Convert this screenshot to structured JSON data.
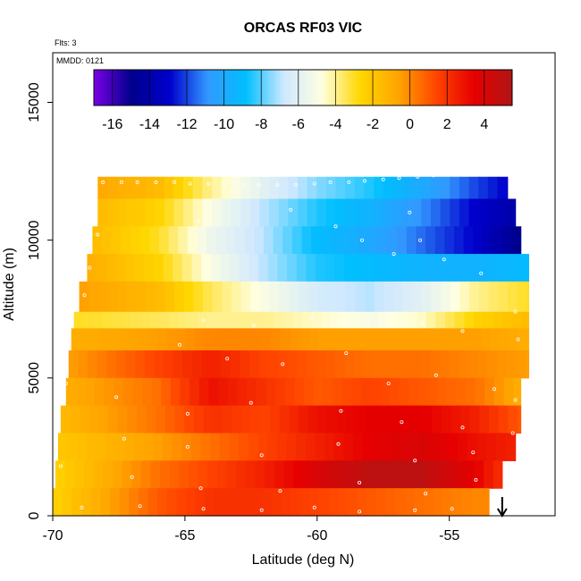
{
  "chart_data": {
    "type": "heatmap",
    "title": "ORCAS RF03 VIC",
    "subtitle_flights": "Flts: 3",
    "subtitle_date": "MMDD: 0121",
    "xlabel": "Latitude (deg N)",
    "ylabel": "Altitude (m)",
    "xlim": [
      -70,
      -51
    ],
    "ylim": [
      0,
      16800
    ],
    "xticks": [
      -70,
      -65,
      -60,
      -55
    ],
    "yticks": [
      0,
      5000,
      10000,
      15000
    ],
    "grid": false,
    "colorbar": {
      "placement": "top-inside",
      "range": [
        -17,
        5.5
      ],
      "ticks": [
        -16,
        -14,
        -12,
        -10,
        -8,
        -6,
        -4,
        -2,
        0,
        2,
        4
      ],
      "colors": [
        "#7a00e6",
        "#00008b",
        "#0000cd",
        "#3399ff",
        "#00bfff",
        "#cfe8ff",
        "#ffffe0",
        "#ffd700",
        "#ffa500",
        "#ff4500",
        "#e60000",
        "#b01515"
      ]
    },
    "arrow_marker": {
      "x": -53,
      "direction": "down"
    },
    "bands": [
      {
        "alt": [
          11500,
          12300
        ],
        "values": [
          [
            -68.3,
            -0.8
          ],
          [
            -66,
            -1.5
          ],
          [
            -64,
            -4
          ],
          [
            -62,
            -6
          ],
          [
            -60,
            -7.5
          ],
          [
            -58,
            -8.5
          ],
          [
            -56,
            -10
          ],
          [
            -54,
            -12
          ],
          [
            -52.8,
            -13
          ]
        ]
      },
      {
        "alt": [
          10500,
          11500
        ],
        "values": [
          [
            -68.3,
            -1.5
          ],
          [
            -66,
            -2.5
          ],
          [
            -64,
            -5
          ],
          [
            -62,
            -7
          ],
          [
            -60,
            -8.5
          ],
          [
            -58,
            -9.5
          ],
          [
            -56,
            -11
          ],
          [
            -54,
            -13
          ],
          [
            -52.5,
            -14
          ]
        ]
      },
      {
        "alt": [
          9500,
          10500
        ],
        "values": [
          [
            -68.5,
            -1.5
          ],
          [
            -66,
            -3
          ],
          [
            -64,
            -5.5
          ],
          [
            -62,
            -7
          ],
          [
            -60,
            -9
          ],
          [
            -58,
            -10
          ],
          [
            -56,
            -11.5
          ],
          [
            -54,
            -13
          ],
          [
            -52.3,
            -15
          ]
        ]
      },
      {
        "alt": [
          8500,
          9500
        ],
        "values": [
          [
            -68.7,
            -1
          ],
          [
            -66,
            -2.5
          ],
          [
            -64,
            -5
          ],
          [
            -62,
            -7
          ],
          [
            -60,
            -8.5
          ],
          [
            -58,
            -9
          ],
          [
            -56,
            -9.5
          ],
          [
            -54,
            -9.5
          ],
          [
            -52,
            -9
          ]
        ]
      },
      {
        "alt": [
          7400,
          8500
        ],
        "values": [
          [
            -69,
            -0.5
          ],
          [
            -66,
            -1.5
          ],
          [
            -64,
            -3.5
          ],
          [
            -62,
            -5
          ],
          [
            -60,
            -6.5
          ],
          [
            -58,
            -7
          ],
          [
            -56,
            -6
          ],
          [
            -54,
            -4
          ],
          [
            -52,
            -3
          ]
        ]
      },
      {
        "alt": [
          6800,
          7400
        ],
        "values": [
          [
            -69.2,
            -3
          ],
          [
            -66,
            -3.5
          ],
          [
            -64,
            -4
          ],
          [
            -62,
            -4
          ],
          [
            -60,
            -4.5
          ],
          [
            -58,
            -5
          ],
          [
            -56,
            -4.5
          ],
          [
            -54,
            -2.5
          ],
          [
            -52,
            -1.5
          ]
        ]
      },
      {
        "alt": [
          6000,
          6800
        ],
        "values": [
          [
            -69.3,
            -1
          ],
          [
            -66,
            -0.5
          ],
          [
            -64,
            0
          ],
          [
            -62,
            0
          ],
          [
            -60,
            -0.5
          ],
          [
            -58,
            -0.5
          ],
          [
            -56,
            -0.5
          ],
          [
            -54,
            -0.5
          ],
          [
            -52,
            -1
          ]
        ]
      },
      {
        "alt": [
          5000,
          6000
        ],
        "values": [
          [
            -69.4,
            -0.5
          ],
          [
            -66,
            1.5
          ],
          [
            -64,
            2.5
          ],
          [
            -62,
            1.5
          ],
          [
            -60,
            1
          ],
          [
            -58,
            0.5
          ],
          [
            -56,
            0.5
          ],
          [
            -54,
            0
          ],
          [
            -52,
            -0.5
          ]
        ]
      },
      {
        "alt": [
          4000,
          5000
        ],
        "values": [
          [
            -69.5,
            -1
          ],
          [
            -66,
            0.5
          ],
          [
            -64,
            3
          ],
          [
            -62,
            2
          ],
          [
            -60,
            1
          ],
          [
            -58,
            1.5
          ],
          [
            -56,
            1
          ],
          [
            -54,
            0.5
          ],
          [
            -52.3,
            -1
          ]
        ]
      },
      {
        "alt": [
          3000,
          4000
        ],
        "values": [
          [
            -69.7,
            -1.5
          ],
          [
            -66,
            0.5
          ],
          [
            -64,
            2
          ],
          [
            -62,
            1.5
          ],
          [
            -60,
            3
          ],
          [
            -58,
            3.5
          ],
          [
            -56,
            3.5
          ],
          [
            -54,
            2.5
          ],
          [
            -52.3,
            1
          ]
        ]
      },
      {
        "alt": [
          2000,
          3000
        ],
        "values": [
          [
            -69.8,
            -2
          ],
          [
            -66,
            -0.5
          ],
          [
            -64,
            0.5
          ],
          [
            -62,
            1.5
          ],
          [
            -60,
            2.5
          ],
          [
            -58,
            3.5
          ],
          [
            -56,
            4
          ],
          [
            -54,
            3
          ],
          [
            -52.5,
            2.5
          ]
        ]
      },
      {
        "alt": [
          1000,
          2000
        ],
        "values": [
          [
            -69.9,
            -2.5
          ],
          [
            -66,
            0.5
          ],
          [
            -64,
            1.5
          ],
          [
            -62,
            2.5
          ],
          [
            -60,
            4
          ],
          [
            -58,
            5
          ],
          [
            -56,
            5
          ],
          [
            -54,
            3.5
          ],
          [
            -53,
            2
          ]
        ]
      },
      {
        "alt": [
          0,
          1000
        ],
        "values": [
          [
            -70,
            -2.5
          ],
          [
            -66,
            1
          ],
          [
            -64,
            2
          ],
          [
            -62,
            2
          ],
          [
            -60,
            1.5
          ],
          [
            -58,
            1
          ],
          [
            -56,
            0.5
          ],
          [
            -54,
            0
          ],
          [
            -53.5,
            0
          ]
        ]
      }
    ],
    "obs_points": [
      [
        -68.1,
        12100
      ],
      [
        -67.4,
        12100
      ],
      [
        -66.8,
        12100
      ],
      [
        -66.1,
        12100
      ],
      [
        -65.4,
        12100
      ],
      [
        -64.8,
        12050
      ],
      [
        -64.1,
        12050
      ],
      [
        -63.5,
        12000
      ],
      [
        -62.8,
        12000
      ],
      [
        -62.2,
        12000
      ],
      [
        -61.5,
        12000
      ],
      [
        -60.8,
        12000
      ],
      [
        -60.1,
        12050
      ],
      [
        -59.5,
        12100
      ],
      [
        -58.8,
        12100
      ],
      [
        -58.2,
        12150
      ],
      [
        -57.5,
        12200
      ],
      [
        -56.9,
        12250
      ],
      [
        -56.2,
        12300
      ],
      [
        -55.6,
        12350
      ],
      [
        -54.9,
        12400
      ],
      [
        -54.3,
        12450
      ],
      [
        -53.6,
        12500
      ],
      [
        -53.0,
        12550
      ],
      [
        -68.3,
        10200
      ],
      [
        -68.6,
        9000
      ],
      [
        -68.8,
        8000
      ],
      [
        -64.5,
        10700
      ],
      [
        -61,
        11100
      ],
      [
        -59.3,
        10500
      ],
      [
        -58.3,
        10000
      ],
      [
        -57.1,
        9500
      ],
      [
        -56.1,
        10000
      ],
      [
        -55.2,
        9300
      ],
      [
        -53.8,
        8800
      ],
      [
        -56.5,
        11000
      ],
      [
        -64.3,
        7100
      ],
      [
        -62.4,
        6900
      ],
      [
        -60.2,
        7200
      ],
      [
        -58.1,
        7100
      ],
      [
        -56,
        7000
      ],
      [
        -54.5,
        6700
      ],
      [
        -52.5,
        7400
      ],
      [
        -52.4,
        6400
      ],
      [
        -65.2,
        6200
      ],
      [
        -63.4,
        5700
      ],
      [
        -61.3,
        5500
      ],
      [
        -58.9,
        5900
      ],
      [
        -57.3,
        4800
      ],
      [
        -55.5,
        5100
      ],
      [
        -53.3,
        4600
      ],
      [
        -52.5,
        4200
      ],
      [
        -69.5,
        4800
      ],
      [
        -67.6,
        4300
      ],
      [
        -64.9,
        3700
      ],
      [
        -62.5,
        4100
      ],
      [
        -59.1,
        3800
      ],
      [
        -56.8,
        3400
      ],
      [
        -54.5,
        3200
      ],
      [
        -52.6,
        3000
      ],
      [
        -67.3,
        2800
      ],
      [
        -64.9,
        2500
      ],
      [
        -62.1,
        2200
      ],
      [
        -59.2,
        2600
      ],
      [
        -56.3,
        2000
      ],
      [
        -54.1,
        2300
      ],
      [
        -52.8,
        1900
      ],
      [
        -69.7,
        1800
      ],
      [
        -67,
        1400
      ],
      [
        -64.4,
        1000
      ],
      [
        -61.4,
        900
      ],
      [
        -58.4,
        1200
      ],
      [
        -55.9,
        800
      ],
      [
        -54,
        1300
      ],
      [
        -53.3,
        800
      ],
      [
        -68.9,
        300
      ],
      [
        -66.7,
        350
      ],
      [
        -64.3,
        250
      ],
      [
        -62.1,
        200
      ],
      [
        -60.1,
        300
      ],
      [
        -58.4,
        150
      ],
      [
        -56.3,
        200
      ],
      [
        -54.9,
        250
      ]
    ]
  }
}
